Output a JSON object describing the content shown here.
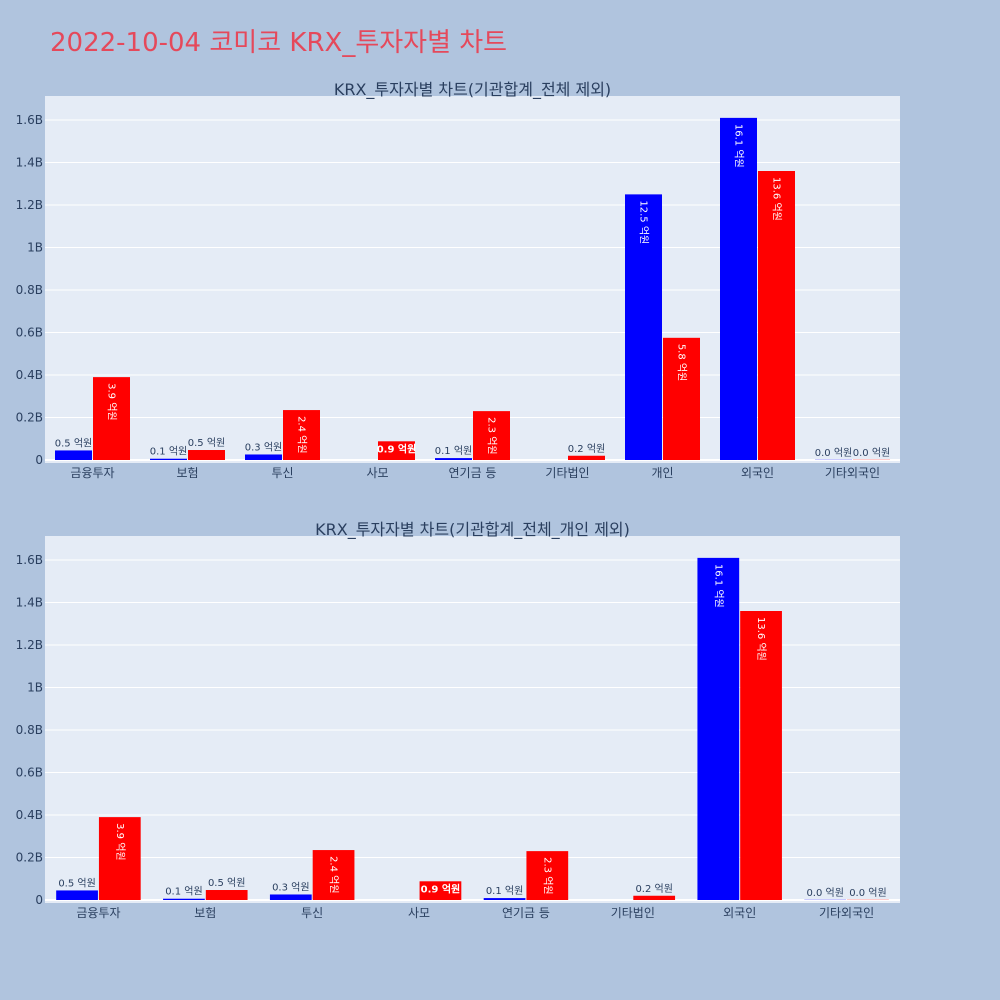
{
  "title": "2022-10-04 코미코 KRX_투자자별 차트",
  "colors": {
    "buy": "#0000ff",
    "sell": "#ff0000",
    "plot_bg": "#e5ecf6",
    "page_bg": "#b0c4de",
    "title": "#e5495b"
  },
  "chart_data": [
    {
      "type": "bar",
      "title": "KRX_투자자별 차트(기관합계_전체 제외)",
      "categories": [
        "금융투자",
        "보험",
        "투신",
        "사모",
        "연기금 등",
        "기타법인",
        "개인",
        "외국인",
        "기타외국인"
      ],
      "y_ticks": [
        "0",
        "0.2B",
        "0.4B",
        "0.6B",
        "0.8B",
        "1B",
        "1.2B",
        "1.4B",
        "1.6B"
      ],
      "ylim": [
        0,
        1.7
      ],
      "series": [
        {
          "color": "#0000ff",
          "values": [
            0.045,
            0.006,
            0.026,
            0,
            0.009,
            0,
            1.25,
            1.61,
            0.001
          ],
          "labels": [
            "0.5 억원",
            "0.1 억원",
            "0.3 억원",
            "",
            "0.1 억원",
            "",
            "12.5 억원",
            "16.1 억원",
            "0.0 억원"
          ]
        },
        {
          "color": "#ff0000",
          "values": [
            0.39,
            0.047,
            0.235,
            0.088,
            0.23,
            0.02,
            0.575,
            1.36,
            0.001
          ],
          "labels": [
            "3.9 억원",
            "0.5 억원",
            "2.4 억원",
            "0.9 억원",
            "2.3 억원",
            "0.2 억원",
            "5.8 억원",
            "13.6 억원",
            "0.0 억원"
          ]
        }
      ]
    },
    {
      "type": "bar",
      "title": "KRX_투자자별 차트(기관합계_전체_개인 제외)",
      "categories": [
        "금융투자",
        "보험",
        "투신",
        "사모",
        "연기금 등",
        "기타법인",
        "외국인",
        "기타외국인"
      ],
      "y_ticks": [
        "0",
        "0.2B",
        "0.4B",
        "0.6B",
        "0.8B",
        "1B",
        "1.2B",
        "1.4B",
        "1.6B"
      ],
      "ylim": [
        0,
        1.7
      ],
      "series": [
        {
          "color": "#0000ff",
          "values": [
            0.045,
            0.006,
            0.026,
            0,
            0.009,
            0,
            1.61,
            0.001
          ],
          "labels": [
            "0.5 억원",
            "0.1 억원",
            "0.3 억원",
            "",
            "0.1 억원",
            "",
            "16.1 억원",
            "0.0 억원"
          ]
        },
        {
          "color": "#ff0000",
          "values": [
            0.39,
            0.047,
            0.235,
            0.088,
            0.23,
            0.02,
            1.36,
            0.001
          ],
          "labels": [
            "3.9 억원",
            "0.5 억원",
            "2.4 억원",
            "0.9 억원",
            "2.3 억원",
            "0.2 억원",
            "13.6 억원",
            "0.0 억원"
          ]
        }
      ]
    }
  ]
}
